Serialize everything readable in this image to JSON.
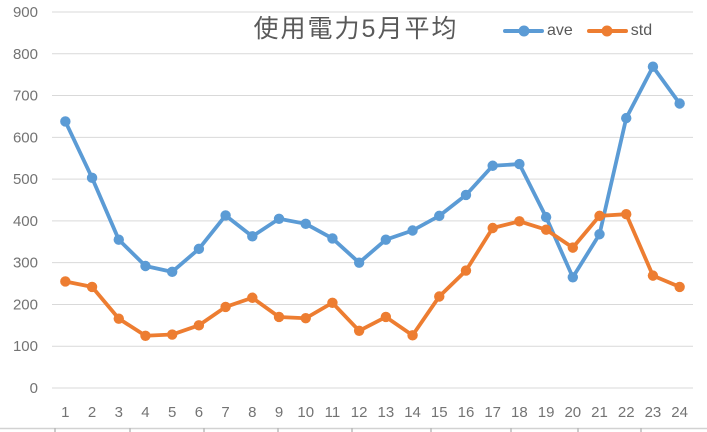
{
  "chart_data": {
    "type": "line",
    "title": "使用電力5月平均",
    "xlabel": "",
    "ylabel": "",
    "x": [
      1,
      2,
      3,
      4,
      5,
      6,
      7,
      8,
      9,
      10,
      11,
      12,
      13,
      14,
      15,
      16,
      17,
      18,
      19,
      20,
      21,
      22,
      23,
      24
    ],
    "series": [
      {
        "name": "ave",
        "color": "#5B9BD5",
        "values": [
          638,
          503,
          355,
          292,
          278,
          333,
          413,
          363,
          405,
          393,
          358,
          300,
          355,
          377,
          412,
          462,
          532,
          536,
          409,
          265,
          368,
          646,
          769,
          681
        ]
      },
      {
        "name": "std",
        "color": "#ED7D31",
        "values": [
          255,
          242,
          166,
          125,
          128,
          150,
          194,
          216,
          170,
          167,
          204,
          137,
          170,
          126,
          219,
          281,
          383,
          399,
          379,
          336,
          412,
          416,
          269,
          242
        ]
      }
    ],
    "ylim": [
      0,
      900
    ],
    "ytick_interval": 100,
    "yticks": [
      "0",
      "100",
      "200",
      "300",
      "400",
      "500",
      "600",
      "700",
      "800",
      "900"
    ],
    "grid": "horizontal",
    "legend_position": "top-right",
    "marker": "circle"
  },
  "style": {
    "gridline_color": "#d9d9d9",
    "axis_label_color": "#737373",
    "title_color": "#595959",
    "bottom_border_color": "#d2d2d2"
  }
}
